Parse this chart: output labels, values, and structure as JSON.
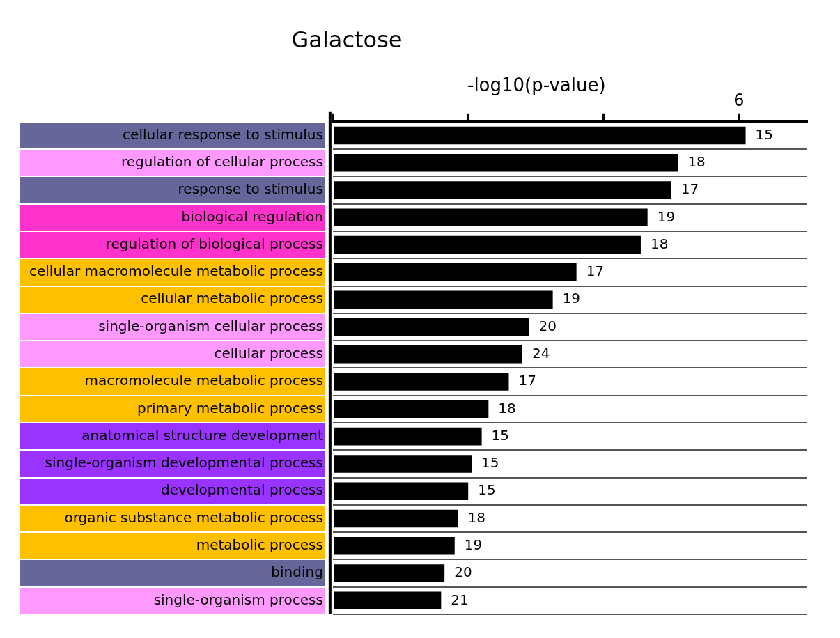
{
  "chart_data": {
    "type": "bar",
    "orientation": "horizontal",
    "title": "Galactose",
    "xlabel": "-log10(p-value)",
    "xlim": [
      0,
      7
    ],
    "xticks": [
      {
        "value": 0,
        "label": null
      },
      {
        "value": 2,
        "label": null
      },
      {
        "value": 4,
        "label": null
      },
      6
    ],
    "categories": [
      "cellular response to stimulus",
      "regulation of cellular process",
      "response to stimulus",
      "biological regulation",
      "regulation of biological process",
      "cellular macromolecule metabolic process",
      "cellular metabolic process",
      "single-organism cellular process",
      "cellular process",
      "macromolecule metabolic process",
      "primary metabolic process",
      "anatomical structure development",
      "single-organism developmental process",
      "developmental process",
      "organic substance metabolic process",
      "metabolic process",
      "binding",
      "single-organism process"
    ],
    "values": [
      6.1,
      5.1,
      5.0,
      4.65,
      4.55,
      3.6,
      3.25,
      2.9,
      2.8,
      2.6,
      2.3,
      2.2,
      2.05,
      2.0,
      1.85,
      1.8,
      1.65,
      1.6
    ],
    "annotations": [
      {
        "text": "15",
        "x": 6.1,
        "y": "cellular response to stimulus"
      },
      {
        "text": "18",
        "x": 5.1,
        "y": "regulation of cellular process"
      },
      {
        "text": "17",
        "x": 5.0,
        "y": "response to stimulus"
      },
      {
        "text": "19",
        "x": 4.65,
        "y": "biological regulation"
      },
      {
        "text": "18",
        "x": 4.55,
        "y": "regulation of biological process"
      },
      {
        "text": "17",
        "x": 3.6,
        "y": "cellular macromolecule metabolic process"
      },
      {
        "text": "19",
        "x": 3.25,
        "y": "cellular metabolic process"
      },
      {
        "text": "20",
        "x": 2.9,
        "y": "single-organism cellular process"
      },
      {
        "text": "24",
        "x": 2.8,
        "y": "cellular process"
      },
      {
        "text": "17",
        "x": 2.6,
        "y": "macromolecule metabolic process"
      },
      {
        "text": "18",
        "x": 2.3,
        "y": "primary metabolic process"
      },
      {
        "text": "15",
        "x": 2.2,
        "y": "anatomical structure development"
      },
      {
        "text": "15",
        "x": 2.05,
        "y": "single-organism developmental process"
      },
      {
        "text": "15",
        "x": 2.0,
        "y": "developmental process"
      },
      {
        "text": "18",
        "x": 1.85,
        "y": "organic substance metabolic process"
      },
      {
        "text": "19",
        "x": 1.8,
        "y": "metabolic process"
      },
      {
        "text": "20",
        "x": 1.65,
        "y": "binding"
      },
      {
        "text": "21",
        "x": 1.6,
        "y": "single-organism process"
      }
    ],
    "color": "#000000",
    "grid": "y"
  }
}
